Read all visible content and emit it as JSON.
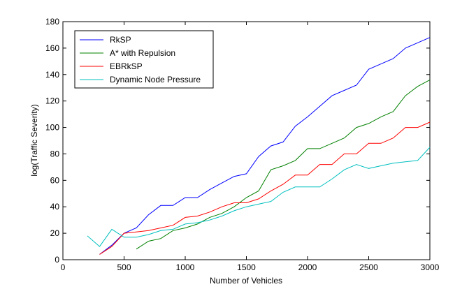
{
  "chart_data": {
    "type": "line",
    "title": "",
    "xlabel": "Number of Vehicles",
    "ylabel": "log(Traffic Severity)",
    "xlim": [
      0,
      3000
    ],
    "ylim": [
      0,
      180
    ],
    "xticks": [
      0,
      500,
      1000,
      1500,
      2000,
      2500,
      3000
    ],
    "yticks": [
      0,
      20,
      40,
      60,
      80,
      100,
      120,
      140,
      160,
      180
    ],
    "grid": false,
    "legend_position": "top-left",
    "series": [
      {
        "name": "RkSP",
        "color": "#0000ff",
        "x": [
          300,
          400,
          500,
          600,
          700,
          800,
          900,
          1000,
          1100,
          1200,
          1300,
          1400,
          1500,
          1600,
          1700,
          1800,
          1900,
          2000,
          2100,
          2200,
          2300,
          2400,
          2500,
          2600,
          2700,
          2800,
          2900,
          3000
        ],
        "y": [
          4,
          11,
          20,
          24,
          34,
          41,
          41,
          47,
          47,
          53,
          58,
          63,
          65,
          78,
          86,
          89,
          101,
          108,
          116,
          124,
          128,
          132,
          144,
          148,
          152,
          160,
          164,
          168
        ]
      },
      {
        "name": "A* with Repulsion",
        "color": "#008000",
        "x": [
          600,
          700,
          800,
          900,
          1000,
          1100,
          1200,
          1300,
          1400,
          1500,
          1600,
          1700,
          1800,
          1900,
          2000,
          2100,
          2200,
          2300,
          2400,
          2500,
          2600,
          2700,
          2800,
          2900,
          3000
        ],
        "y": [
          8,
          14,
          16,
          22,
          24,
          27,
          32,
          35,
          40,
          47,
          52,
          68,
          71,
          75,
          84,
          84,
          88,
          92,
          100,
          103,
          108,
          112,
          124,
          131,
          136
        ]
      },
      {
        "name": "EBRkSP",
        "color": "#ff0000",
        "x": [
          300,
          400,
          500,
          600,
          700,
          800,
          900,
          1000,
          1100,
          1200,
          1300,
          1400,
          1500,
          1600,
          1700,
          1800,
          1900,
          2000,
          2100,
          2200,
          2300,
          2400,
          2500,
          2600,
          2700,
          2800,
          2900,
          3000
        ],
        "y": [
          4,
          10,
          20,
          21,
          22,
          24,
          26,
          32,
          33,
          36,
          40,
          43,
          43,
          46,
          52,
          57,
          64,
          64,
          72,
          72,
          80,
          80,
          88,
          88,
          92,
          100,
          100,
          104
        ]
      },
      {
        "name": "Dynamic Node Pressure",
        "color": "#00bfbf",
        "x": [
          200,
          300,
          400,
          500,
          600,
          700,
          800,
          900,
          1000,
          1100,
          1200,
          1300,
          1400,
          1500,
          1600,
          1700,
          1800,
          1900,
          2000,
          2100,
          2200,
          2300,
          2400,
          2500,
          2600,
          2700,
          2800,
          2900,
          3000
        ],
        "y": [
          18,
          10,
          23,
          17,
          17,
          19,
          22,
          23,
          27,
          28,
          30,
          33,
          37,
          40,
          42,
          44,
          51,
          55,
          55,
          55,
          61,
          68,
          72,
          69,
          71,
          73,
          74,
          75,
          85
        ]
      }
    ]
  }
}
